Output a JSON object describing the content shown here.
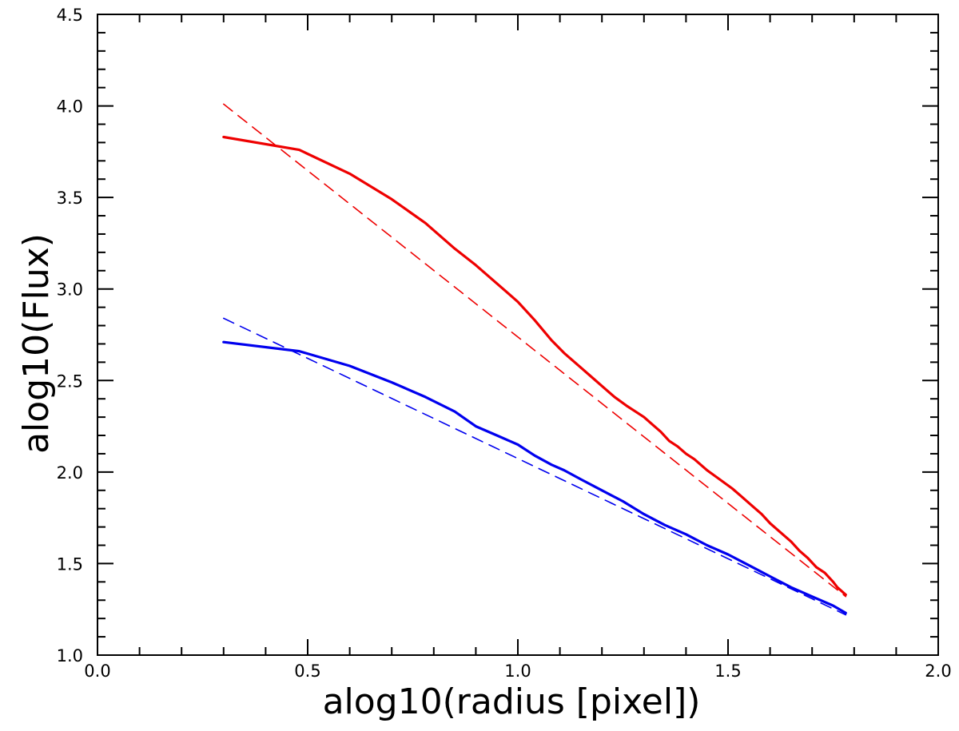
{
  "chart_data": {
    "type": "line",
    "title": "",
    "xlabel": "alog10(radius [pixel])",
    "ylabel": "alog10(Flux)",
    "xlim": [
      0.0,
      2.0
    ],
    "ylim": [
      1.0,
      4.5
    ],
    "grid": false,
    "legend": "none",
    "x_ticks": [
      "0.0",
      "0.5",
      "1.0",
      "1.5",
      "2.0"
    ],
    "y_ticks": [
      "1.0",
      "1.5",
      "2.0",
      "2.5",
      "3.0",
      "3.5",
      "4.0",
      "4.5"
    ],
    "series": [
      {
        "color": "#ee0000",
        "style": "solid",
        "x": [
          0.3,
          0.48,
          0.6,
          0.7,
          0.78,
          0.85,
          0.9,
          0.95,
          1.0,
          1.04,
          1.08,
          1.11,
          1.15,
          1.18,
          1.2,
          1.23,
          1.26,
          1.28,
          1.3,
          1.32,
          1.34,
          1.36,
          1.38,
          1.4,
          1.42,
          1.45,
          1.48,
          1.51,
          1.53,
          1.56,
          1.58,
          1.6,
          1.62,
          1.65,
          1.67,
          1.69,
          1.71,
          1.73,
          1.75,
          1.76,
          1.78
        ],
        "y": [
          3.83,
          3.76,
          3.63,
          3.49,
          3.36,
          3.22,
          3.13,
          3.03,
          2.93,
          2.83,
          2.72,
          2.65,
          2.57,
          2.51,
          2.47,
          2.41,
          2.36,
          2.33,
          2.3,
          2.26,
          2.22,
          2.17,
          2.14,
          2.1,
          2.07,
          2.01,
          1.96,
          1.91,
          1.87,
          1.81,
          1.77,
          1.72,
          1.68,
          1.62,
          1.57,
          1.53,
          1.48,
          1.45,
          1.4,
          1.37,
          1.33
        ]
      },
      {
        "color": "#ee0000",
        "style": "dashed",
        "x": [
          0.3,
          1.78
        ],
        "y": [
          4.01,
          1.32
        ]
      },
      {
        "color": "#0000ee",
        "style": "solid",
        "x": [
          0.3,
          0.48,
          0.6,
          0.7,
          0.78,
          0.85,
          0.9,
          0.95,
          1.0,
          1.04,
          1.08,
          1.11,
          1.15,
          1.2,
          1.25,
          1.3,
          1.35,
          1.4,
          1.45,
          1.5,
          1.55,
          1.6,
          1.65,
          1.7,
          1.75,
          1.78
        ],
        "y": [
          2.71,
          2.66,
          2.58,
          2.49,
          2.41,
          2.33,
          2.25,
          2.2,
          2.15,
          2.09,
          2.04,
          2.01,
          1.96,
          1.9,
          1.84,
          1.77,
          1.71,
          1.66,
          1.6,
          1.55,
          1.49,
          1.43,
          1.37,
          1.32,
          1.27,
          1.23
        ]
      },
      {
        "color": "#0000ee",
        "style": "dashed",
        "x": [
          0.3,
          1.78
        ],
        "y": [
          2.84,
          1.22
        ]
      }
    ]
  }
}
